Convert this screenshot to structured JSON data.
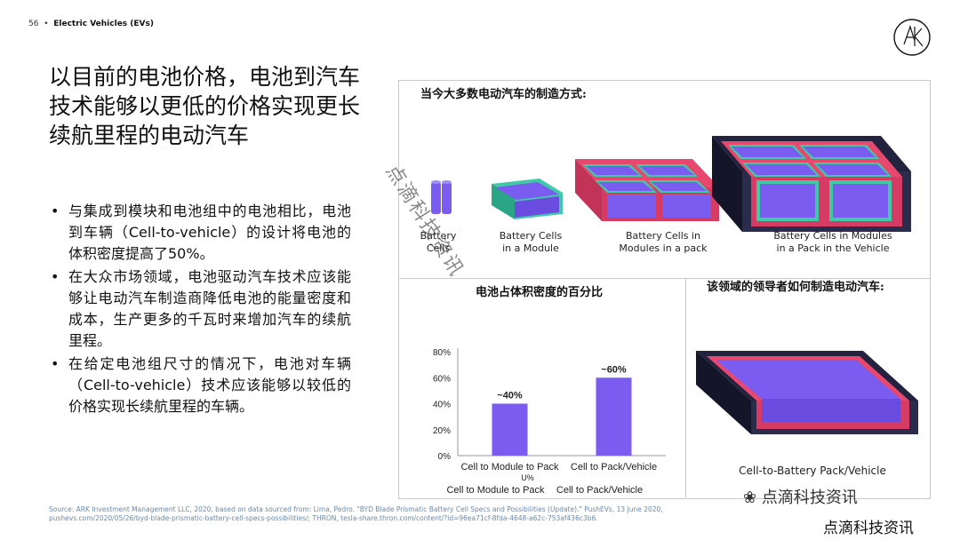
{
  "header": {
    "page_number": "56",
    "separator": "•",
    "section": "Electric Vehicles (EVs)"
  },
  "title": "以目前的电池价格，电池到汽车技术能够以更低的价格实现更长续航里程的电动汽车",
  "bullets": [
    "与集成到模块和电池组中的电池相比，电池到车辆（Cell-to-vehicle）的设计将电池的体积密度提高了50%。",
    "在大众市场领域，电池驱动汽车技术应该能够让电动汽车制造商降低电池的能量密度和成本，生产更多的千瓦时来增加汽车的续航里程。",
    "在给定电池组尺寸的情况下，电池对车辆（Cell-to-vehicle）技术应该能够以较低的价格实现长续航里程的车辆。"
  ],
  "panel": {
    "top_title": "当今大多数电动汽车的制造方式:",
    "captions": {
      "battery_cells": "Battery\nCells",
      "cells_in_module": "Battery Cells\nin a Module",
      "cells_in_modules_pack": "Battery Cells in\nModules in a pack",
      "cells_in_vehicle": "Battery Cells in Modules\nin a Pack in the Vehicle"
    },
    "chart_title": "电池占体积密度的百分比",
    "leader_title": "该领域的领导者如何制造电动汽车:",
    "leader_caption": "Cell-to-Battery Pack/Vehicle"
  },
  "chart_data": {
    "type": "bar",
    "title": "电池占体积密度的百分比",
    "categories": [
      "Cell to Module to Pack",
      "Cell to Pack/Vehicle"
    ],
    "tick_labels_top": [
      "Cell to Module to Pack",
      "Cell to Pack/Vehicle"
    ],
    "tick_labels_bottom": [
      "Cell to Module to Pack",
      "Cell to Pack/Vehicle"
    ],
    "stray_label": "U%",
    "values": [
      40,
      60
    ],
    "data_labels": [
      "~40%",
      "~60%"
    ],
    "ylim": [
      0,
      80
    ],
    "yticks": [
      "0%",
      "20%",
      "40%",
      "60%",
      "80%"
    ],
    "grid": false,
    "bar_color": "#7b5cf0"
  },
  "watermark": {
    "diagonal": "点滴科技资讯",
    "corner1": "点滴科技资讯",
    "corner2": "点滴科技资讯"
  },
  "source": "Source: ARK Investment Management LLC, 2020, based on data sourced from: Lima, Pedro. \"BYD Blade Prismatic Battery Cell Specs and Possibilities (Update).\" PushEVs, 13 June 2020, pushevs.com/2020/05/26/byd-blade-prismatic-battery-cell-specs-possibilities/; THRON, tesla-share.thron.com/content/?id=96ea71cf-8fda-4648-a62c-753af436c3b6.",
  "colors": {
    "cell": "#7b5cf0",
    "module": "#3ec9a7",
    "pack": "#e8476e",
    "vehicle": "#23233f"
  }
}
